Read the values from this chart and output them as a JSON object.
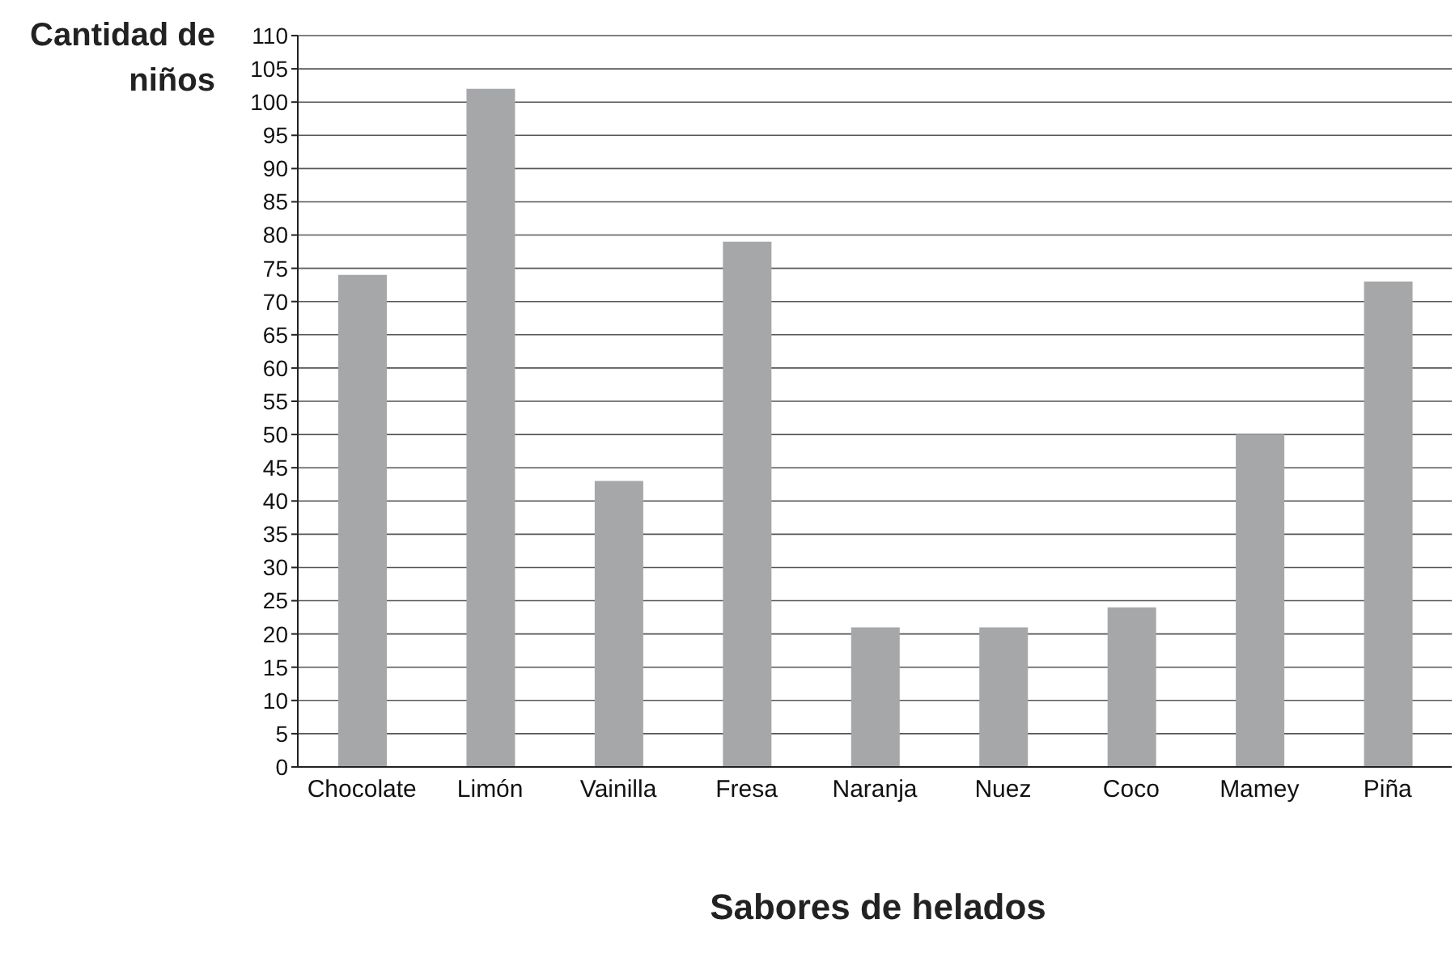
{
  "chart_data": {
    "type": "bar",
    "xlabel": "Sabores de helados",
    "ylabel": "Cantidad de niños",
    "categories": [
      "Chocolate",
      "Limón",
      "Vainilla",
      "Fresa",
      "Naranja",
      "Nuez",
      "Coco",
      "Mamey",
      "Piña"
    ],
    "values": [
      74,
      102,
      43,
      79,
      21,
      21,
      24,
      50,
      73
    ],
    "color": "#a6a7a9",
    "ylim": [
      0,
      110
    ],
    "yticks": [
      0,
      5,
      10,
      15,
      20,
      25,
      30,
      35,
      40,
      45,
      50,
      55,
      60,
      65,
      70,
      75,
      80,
      85,
      90,
      95,
      100,
      105,
      110
    ],
    "grid": "y"
  }
}
